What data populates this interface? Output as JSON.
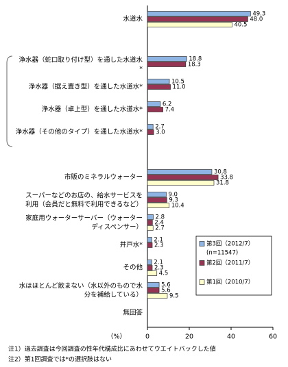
{
  "chart_data": {
    "type": "hbar",
    "categories": [
      "水道水",
      null,
      "浄水器（蛇口取り付け型）を通した水道水\n*",
      "浄水器（据え置き型）を通した水道水*",
      "浄水器（卓上型）を通した水道水*",
      "浄水器（その他のタイプ）を通した水道水*",
      null,
      "市販のミネラルウォーター",
      "スーパーなどのお店の、給水サービスを\n利用（会員だと無料で利用できるなど）",
      "家庭用ウォーターサーバー（ウォーター\nディスペンサー）",
      "井戸水*",
      "その他",
      "水はほとんど飲まない（水以外のもので水\n分を補給している）",
      "無回答"
    ],
    "series": [
      {
        "name": "第3回（2012/7）",
        "color": "#8db4e2",
        "values": [
          49.3,
          null,
          18.8,
          10.5,
          6.2,
          2.7,
          null,
          30.8,
          9.0,
          2.8,
          2.1,
          2.1,
          5.6,
          null
        ],
        "value_labels": [
          "49.3",
          null,
          "18.8",
          "10.5",
          "6.2",
          "2.7",
          null,
          "30.8",
          "9.0",
          "2.8",
          "2.1",
          "2.1",
          "5.6",
          null
        ]
      },
      {
        "name": "第2回（2011/7）",
        "color": "#953553",
        "values": [
          48.0,
          null,
          18.3,
          11.0,
          7.4,
          3.0,
          null,
          33.8,
          9.3,
          2.4,
          2.3,
          2.3,
          5.6,
          null
        ],
        "value_labels": [
          "48.0",
          null,
          "18.3",
          "11.0",
          "7.4",
          "3.0",
          null,
          "33.8",
          "9.3",
          "2.4",
          "2.3",
          "2.3",
          "5.6",
          null
        ]
      },
      {
        "name": "第1回（2010/7）",
        "color": "#ffffcc",
        "values": [
          40.5,
          null,
          null,
          null,
          null,
          null,
          null,
          31.8,
          10.4,
          2.7,
          null,
          4.5,
          9.5,
          null
        ],
        "value_labels": [
          "40.5",
          null,
          null,
          null,
          null,
          null,
          null,
          "31.8",
          "10.4",
          "2.7",
          null,
          "4.5",
          "9.5",
          null
        ]
      }
    ],
    "legend_note": "(n=11547)",
    "xlim": [
      0,
      60
    ],
    "xticks": [
      0,
      20,
      40,
      60
    ],
    "x_unit": "（%）",
    "notes": [
      "注1）過去調査は今回調査の性年代構成比にあわせてウエイトバックした値",
      "注2）第1回調査では*の選択肢はない"
    ]
  }
}
